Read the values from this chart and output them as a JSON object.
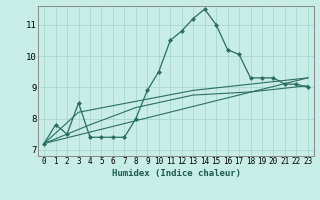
{
  "xlabel": "Humidex (Indice chaleur)",
  "ylabel": "",
  "bg_color": "#c8ece6",
  "grid_color": "#a8d8d0",
  "line_color": "#2a6e62",
  "spine_color": "#888888",
  "xlim": [
    -0.5,
    23.5
  ],
  "ylim": [
    6.8,
    11.6
  ],
  "yticks": [
    7,
    8,
    9,
    10,
    11
  ],
  "xticks": [
    0,
    1,
    2,
    3,
    4,
    5,
    6,
    7,
    8,
    9,
    10,
    11,
    12,
    13,
    14,
    15,
    16,
    17,
    18,
    19,
    20,
    21,
    22,
    23
  ],
  "series_main": {
    "x": [
      0,
      1,
      2,
      3,
      4,
      5,
      6,
      7,
      8,
      9,
      10,
      11,
      12,
      13,
      14,
      15,
      16,
      17,
      18,
      19,
      20,
      21,
      22,
      23
    ],
    "y": [
      7.2,
      7.8,
      7.5,
      8.5,
      7.4,
      7.4,
      7.4,
      7.4,
      8.0,
      8.9,
      9.5,
      10.5,
      10.8,
      11.2,
      11.5,
      11.0,
      10.2,
      10.05,
      9.3,
      9.3,
      9.3,
      9.1,
      9.1,
      9.0
    ]
  },
  "series_lines": [
    {
      "x": [
        0,
        23
      ],
      "y": [
        7.2,
        9.3
      ]
    },
    {
      "x": [
        0,
        4,
        8,
        13,
        18,
        23
      ],
      "y": [
        7.2,
        7.8,
        8.35,
        8.75,
        8.85,
        9.05
      ]
    },
    {
      "x": [
        0,
        3,
        8,
        13,
        18,
        23
      ],
      "y": [
        7.2,
        8.2,
        8.55,
        8.9,
        9.1,
        9.3
      ]
    }
  ]
}
